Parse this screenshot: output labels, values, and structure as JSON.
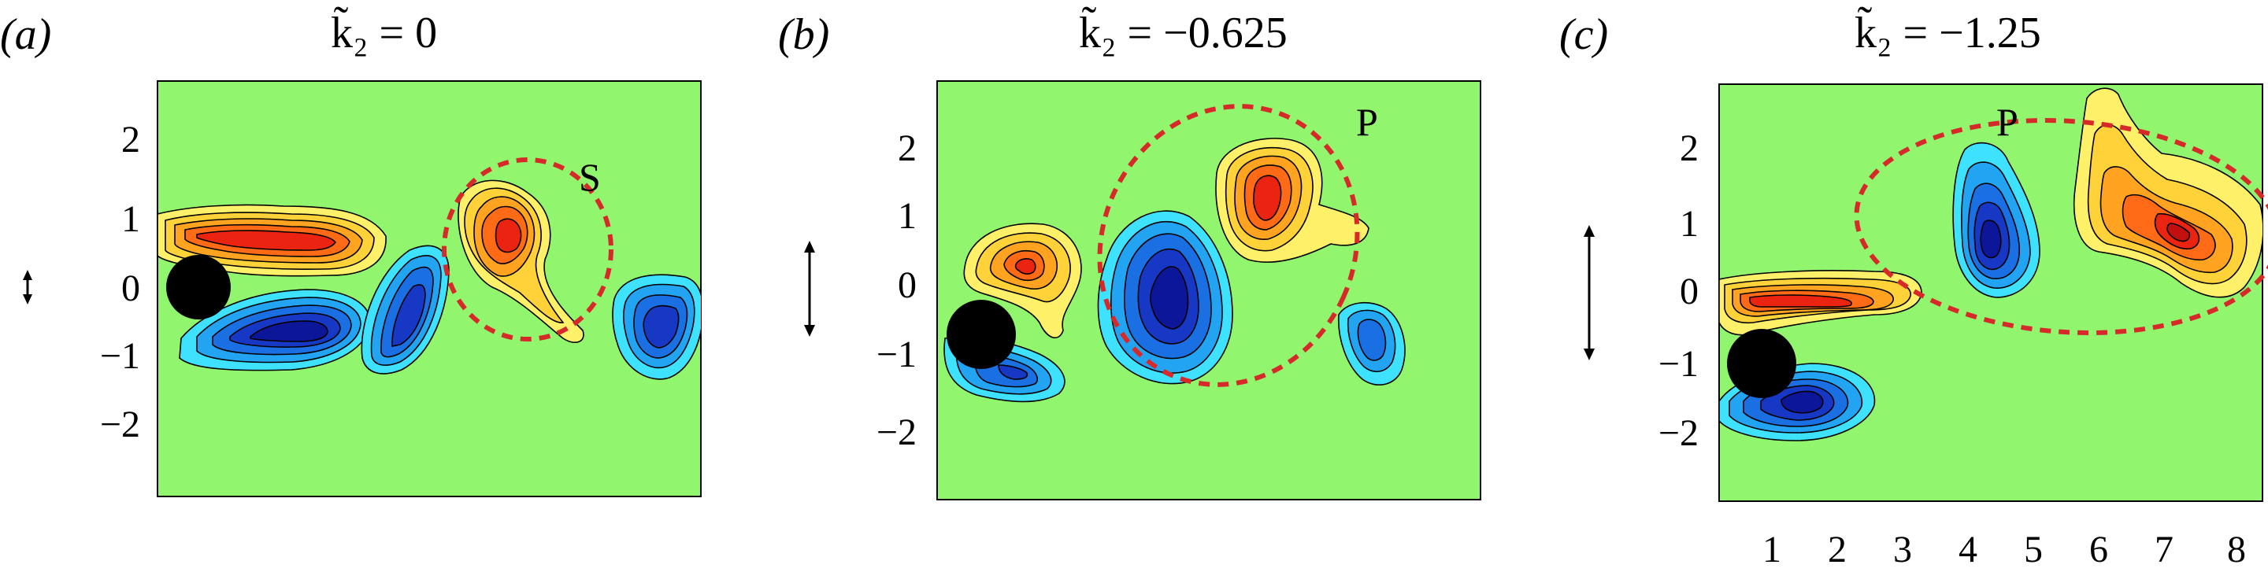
{
  "panels": [
    {
      "id": "a",
      "letter": "(a)",
      "title": "k̃₂ = 0",
      "region_label": "S",
      "y_ticks": [
        "2",
        "1",
        "0",
        "−1",
        "−2"
      ]
    },
    {
      "id": "b",
      "letter": "(b)",
      "title": "k̃₂ = −0.625",
      "region_label": "P",
      "y_ticks": [
        "2",
        "1",
        "0",
        "−1",
        "−2"
      ]
    },
    {
      "id": "c",
      "letter": "(c)",
      "title": "k̃₂ = −1.25",
      "region_label": "P",
      "y_ticks": [
        "2",
        "1",
        "0",
        "−1",
        "−2"
      ],
      "x_ticks": [
        "1",
        "2",
        "3",
        "4",
        "5",
        "6",
        "7",
        "8"
      ]
    }
  ],
  "colors": {
    "background_field": "#91f66e",
    "positive_vorticity": [
      "#fff06a",
      "#ffd23a",
      "#ffa321",
      "#ff6a16",
      "#ea2410",
      "#c21010"
    ],
    "negative_vorticity": [
      "#3ee2ff",
      "#23a4f2",
      "#1a6fe2",
      "#1638c4",
      "#0c1698"
    ],
    "cylinder": "#000000",
    "enclosure": "#d62a2a"
  }
}
